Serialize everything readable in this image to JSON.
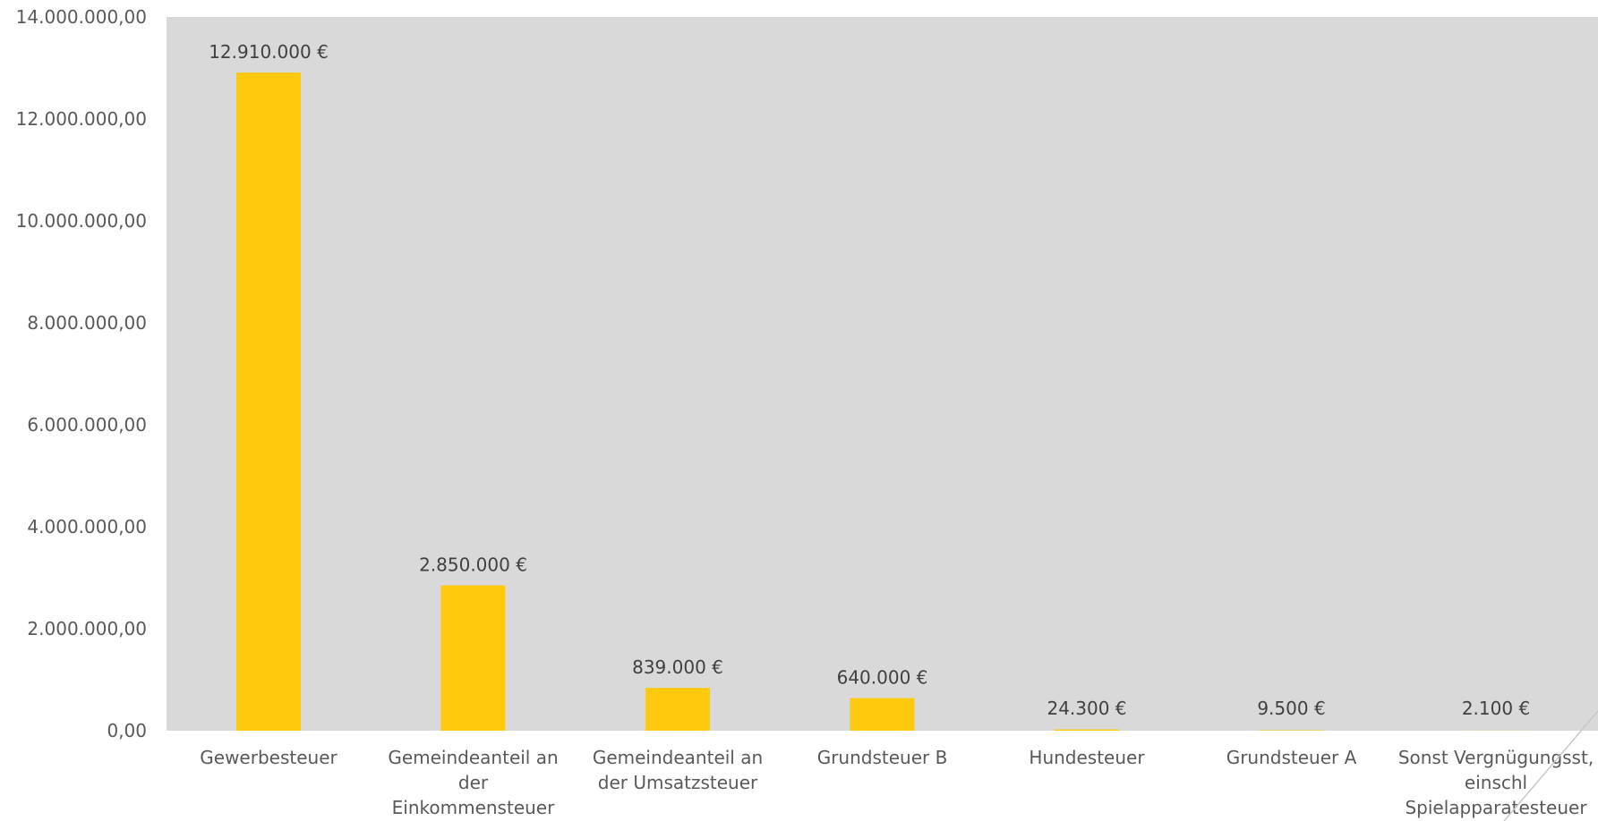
{
  "colors": {
    "plot_background": "#d9d9d9",
    "bar": "#ffc90e",
    "text": "#595959"
  },
  "chart_data": {
    "type": "bar",
    "categories": [
      [
        "Gewerbesteuer"
      ],
      [
        "Gemeindeanteil an",
        "der",
        "Einkommensteuer"
      ],
      [
        "Gemeindeanteil an",
        "der Umsatzsteuer"
      ],
      [
        "Grundsteuer B"
      ],
      [
        "Hundesteuer"
      ],
      [
        "Grundsteuer A"
      ],
      [
        "Sonst Vergnügungsst,",
        "einschl",
        "Spielapparatesteuer"
      ]
    ],
    "values": [
      12910000,
      2850000,
      839000,
      640000,
      24300,
      9500,
      2100
    ],
    "data_labels": [
      "12.910.000 €",
      "2.850.000 €",
      "839.000 €",
      "640.000 €",
      "24.300 €",
      "9.500 €",
      "2.100 €"
    ],
    "y_ticks": [
      "0,00",
      "2.000.000,00",
      "4.000.000,00",
      "6.000.000,00",
      "8.000.000,00",
      "10.000.000,00",
      "12.000.000,00",
      "14.000.000,00"
    ],
    "ylim": [
      0,
      14000000
    ],
    "grid": false,
    "legend": "none"
  }
}
